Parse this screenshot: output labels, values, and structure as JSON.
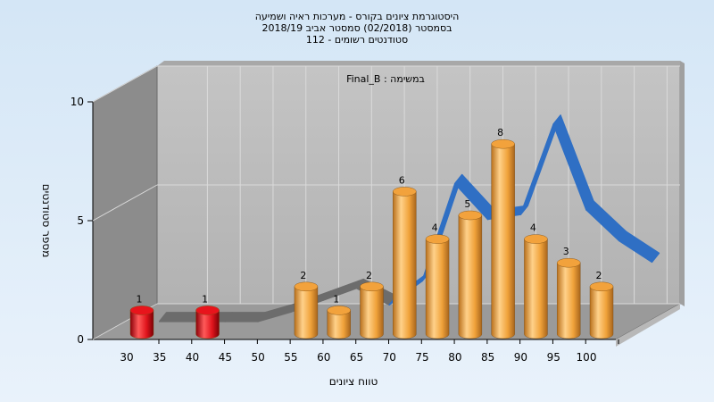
{
  "chart_data": {
    "type": "bar",
    "title_lines": [
      "היסטוגרמת ציונים בקורס - מערכות ראיה ושמיעה",
      "בסמסטר  (02/2018)  סמסטר אביב 2018/19",
      "סטודנטים רשומים - 112"
    ],
    "annotation": "Final_B : במשימה",
    "xlabel": "טווח ציונים",
    "ylabel": "מספר סטודנטים",
    "x_ticks": [
      "30",
      "35",
      "40",
      "45",
      "50",
      "55",
      "60",
      "65",
      "70",
      "75",
      "80",
      "85",
      "90",
      "95",
      "100"
    ],
    "y_ticks": [
      "0",
      "5",
      "10"
    ],
    "ylim": [
      0,
      10
    ],
    "bars": [
      {
        "x": 30,
        "value": 1,
        "color": "#e8141c"
      },
      {
        "x": 40,
        "value": 1,
        "color": "#e8141c"
      },
      {
        "x": 55,
        "value": 2,
        "color": "#f2a23c"
      },
      {
        "x": 60,
        "value": 1,
        "color": "#f2a23c"
      },
      {
        "x": 65,
        "value": 2,
        "color": "#f2a23c"
      },
      {
        "x": 70,
        "value": 6,
        "color": "#f2a23c"
      },
      {
        "x": 75,
        "value": 4,
        "color": "#f2a23c"
      },
      {
        "x": 80,
        "value": 5,
        "color": "#f2a23c"
      },
      {
        "x": 85,
        "value": 8,
        "color": "#f2a23c"
      },
      {
        "x": 90,
        "value": 4,
        "color": "#f2a23c"
      },
      {
        "x": 95,
        "value": 3,
        "color": "#f2a23c"
      },
      {
        "x": 100,
        "value": 2,
        "color": "#f2a23c"
      }
    ],
    "curve": [
      {
        "x": 30,
        "y": 0.2
      },
      {
        "x": 35,
        "y": 0.2
      },
      {
        "x": 40,
        "y": 0.2
      },
      {
        "x": 45,
        "y": 0.2
      },
      {
        "x": 50,
        "y": 0.6
      },
      {
        "x": 55,
        "y": 1.1
      },
      {
        "x": 60,
        "y": 1.6
      },
      {
        "x": 65,
        "y": 0.9
      },
      {
        "x": 70,
        "y": 1.9
      },
      {
        "x": 75,
        "y": 6.0
      },
      {
        "x": 80,
        "y": 4.5
      },
      {
        "x": 85,
        "y": 4.7
      },
      {
        "x": 90,
        "y": 8.5
      },
      {
        "x": 95,
        "y": 4.9
      },
      {
        "x": 100,
        "y": 3.6
      },
      {
        "x": 105,
        "y": 2.7
      }
    ],
    "curve_low_color": "#6c6c6c",
    "curve_high_color": "#2f6fc4",
    "grid": true
  }
}
